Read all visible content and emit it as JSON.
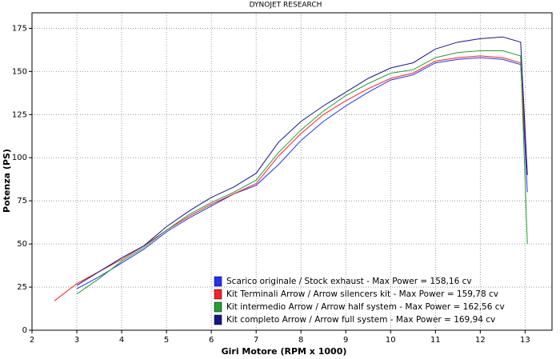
{
  "chart_data": {
    "type": "line",
    "title": "DYNOJET RESEARCH",
    "x_label": "Giri Motore (RPM x 1000)",
    "y_label": "Potenza (PS)",
    "x": [
      2.5,
      3,
      3.5,
      4,
      4.5,
      5,
      5.5,
      6,
      6.5,
      7,
      7.5,
      8,
      8.5,
      9,
      9.5,
      10,
      10.5,
      11,
      11.5,
      12,
      12.5,
      12.9,
      13.05
    ],
    "series": [
      {
        "name": "Scarico originale / Stock exhaust - Max Power = 158,16 cv",
        "color": "#2030ff",
        "values": [
          null,
          24,
          31,
          39,
          47,
          57,
          65,
          72,
          79,
          84,
          96,
          110,
          121,
          130,
          138,
          145,
          148,
          155,
          157,
          158,
          157,
          154,
          80
        ]
      },
      {
        "name": "Kit Terminali Arrow / Arrow silencers kit - Max Power = 159,78 cv",
        "color": "#ff2020",
        "values": [
          17,
          27,
          34,
          41,
          49,
          58,
          66,
          73,
          79,
          85,
          101,
          114,
          125,
          133,
          140,
          146,
          149,
          156,
          158,
          159,
          158,
          155,
          90
        ]
      },
      {
        "name": "Kit intermedio Arrow / Arrow half system - Max Power = 162,56 cv",
        "color": "#20a030",
        "values": [
          null,
          21,
          30,
          40,
          48,
          58,
          67,
          74,
          80,
          87,
          103,
          116,
          127,
          136,
          143,
          149,
          151,
          158,
          161,
          162,
          162,
          159,
          50
        ]
      },
      {
        "name": "Kit completo Arrow / Arrow full system - Max Power = 169,94 cv",
        "color": "#141490",
        "values": [
          null,
          26,
          34,
          42,
          49,
          60,
          69,
          77,
          83,
          91,
          109,
          121,
          130,
          138,
          146,
          152,
          155,
          163,
          167,
          169,
          170,
          167,
          90
        ]
      }
    ],
    "xlim": [
      2,
      13.6
    ],
    "ylim": [
      0,
      184
    ],
    "xticks": [
      2,
      3,
      4,
      5,
      6,
      7,
      8,
      9,
      10,
      11,
      12,
      13
    ],
    "yticks": [
      0,
      25,
      50,
      75,
      100,
      125,
      150,
      175
    ],
    "grid": true
  }
}
